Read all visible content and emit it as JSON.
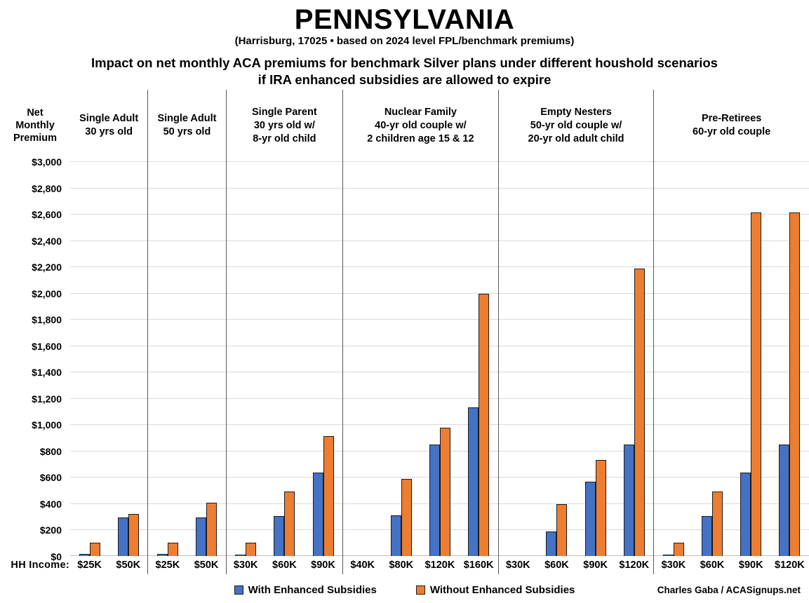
{
  "header": {
    "title": "PENNSYLVANIA",
    "subtitle": "(Harrisburg, 17025 • based on 2024 level FPL/benchmark premiums)",
    "question_line1": "Impact on net monthly ACA premiums for benchmark Silver plans under different houshold scenarios",
    "question_line2": "if IRA enhanced subsidies are allowed to expire"
  },
  "y_axis": {
    "label": "Net\nMonthly\nPremium",
    "hh_income_label": "HH Income:"
  },
  "colors": {
    "with_enhanced": "#4472C4",
    "without_enhanced": "#ED7D31",
    "bar_border": "#1c1c1c",
    "gridline": "#d9d9d9",
    "baseline": "#bfbfbf",
    "divider": "#5a5a5a"
  },
  "chart_data": {
    "type": "bar",
    "title": "Impact on net monthly ACA premiums for benchmark Silver plans under different houshold scenarios if IRA enhanced subsidies are allowed to expire",
    "ylabel": "Net Monthly Premium",
    "xlabel": "HH Income",
    "ylim": [
      0,
      3000
    ],
    "ytick_step": 200,
    "ytick_prefix": "$",
    "grid": true,
    "legend_position": "bottom",
    "series_meta": [
      {
        "key": "with_enhanced",
        "name": "With Enhanced Subsidies",
        "color": "#4472C4"
      },
      {
        "key": "without_enhanced",
        "name": "Without Enhanced Subsidies",
        "color": "#ED7D31"
      }
    ],
    "groups": [
      {
        "label_lines": [
          "Single Adult",
          "30 yrs old"
        ],
        "categories": [
          "$25K",
          "$50K"
        ],
        "with_enhanced": [
          15,
          295
        ],
        "without_enhanced": [
          100,
          320
        ]
      },
      {
        "label_lines": [
          "Single Adult",
          "50 yrs old"
        ],
        "categories": [
          "$25K",
          "$50K"
        ],
        "with_enhanced": [
          15,
          295
        ],
        "without_enhanced": [
          100,
          405
        ]
      },
      {
        "label_lines": [
          "Single Parent",
          "30 yrs old w/",
          "8-yr old child"
        ],
        "categories": [
          "$30K",
          "$60K",
          "$90K"
        ],
        "with_enhanced": [
          5,
          305,
          635
        ],
        "without_enhanced": [
          100,
          490,
          910
        ]
      },
      {
        "label_lines": [
          "Nuclear Family",
          "40-yr old couple w/",
          "2 children age 15 & 12"
        ],
        "categories": [
          "$40K",
          "$80K",
          "$120K",
          "$160K"
        ],
        "with_enhanced": [
          0,
          310,
          845,
          1130
        ],
        "without_enhanced": [
          0,
          585,
          975,
          1995
        ]
      },
      {
        "label_lines": [
          "Empty Nesters",
          "50-yr old couple w/",
          "20-yr old adult child"
        ],
        "categories": [
          "$30K",
          "$60K",
          "$90K",
          "$120K"
        ],
        "with_enhanced": [
          0,
          185,
          565,
          845
        ],
        "without_enhanced": [
          0,
          395,
          730,
          2185
        ]
      },
      {
        "label_lines": [
          "Pre-Retirees",
          "60-yr old couple"
        ],
        "categories": [
          "$30K",
          "$60K",
          "$90K",
          "$120K"
        ],
        "with_enhanced": [
          5,
          305,
          635,
          845
        ],
        "without_enhanced": [
          100,
          490,
          2610,
          2610
        ]
      }
    ]
  },
  "footer": {
    "credit": "Charles Gaba / ACASignups.net"
  }
}
